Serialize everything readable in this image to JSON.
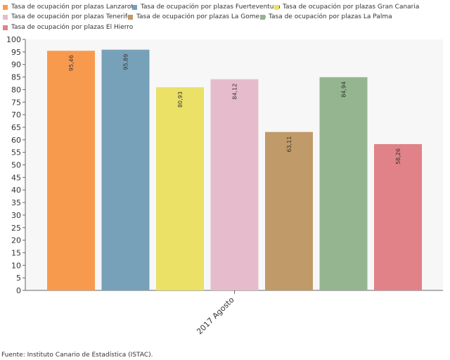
{
  "source": "Fuente: Instituto Canario de Estadística (ISTAC).",
  "chart_data": {
    "type": "bar",
    "categories": [
      "2017 Agosto"
    ],
    "series": [
      {
        "name": "Tasa de ocupación por plazas Lanzarote",
        "values": [
          95.46
        ],
        "label": "95,46",
        "color": "#f89a4e"
      },
      {
        "name": "Tasa de ocupación por plazas Fuerteventura",
        "values": [
          95.89
        ],
        "label": "95,89",
        "color": "#77a1b8"
      },
      {
        "name": "Tasa de ocupación por plazas Gran Canaria",
        "values": [
          80.93
        ],
        "label": "80,93",
        "color": "#ebe167"
      },
      {
        "name": "Tasa de ocupación por plazas Tenerife",
        "values": [
          84.12
        ],
        "label": "84,12",
        "color": "#e6bccc"
      },
      {
        "name": "Tasa de ocupación por plazas La Gomera",
        "values": [
          63.11
        ],
        "label": "63,11",
        "color": "#c09a68"
      },
      {
        "name": "Tasa de ocupación por plazas La Palma",
        "values": [
          84.94
        ],
        "label": "84,94",
        "color": "#94b590"
      },
      {
        "name": "Tasa de ocupación por plazas El Hierro",
        "values": [
          58.26
        ],
        "label": "58,26",
        "color": "#e08287"
      }
    ],
    "ylim": [
      0,
      100
    ],
    "yticks": [
      "0",
      "5",
      "10",
      "15",
      "20",
      "25",
      "30",
      "35",
      "40",
      "45",
      "50",
      "55",
      "60",
      "65",
      "70",
      "75",
      "80",
      "85",
      "90",
      "95",
      "100"
    ],
    "grid": false,
    "legend": "top"
  }
}
